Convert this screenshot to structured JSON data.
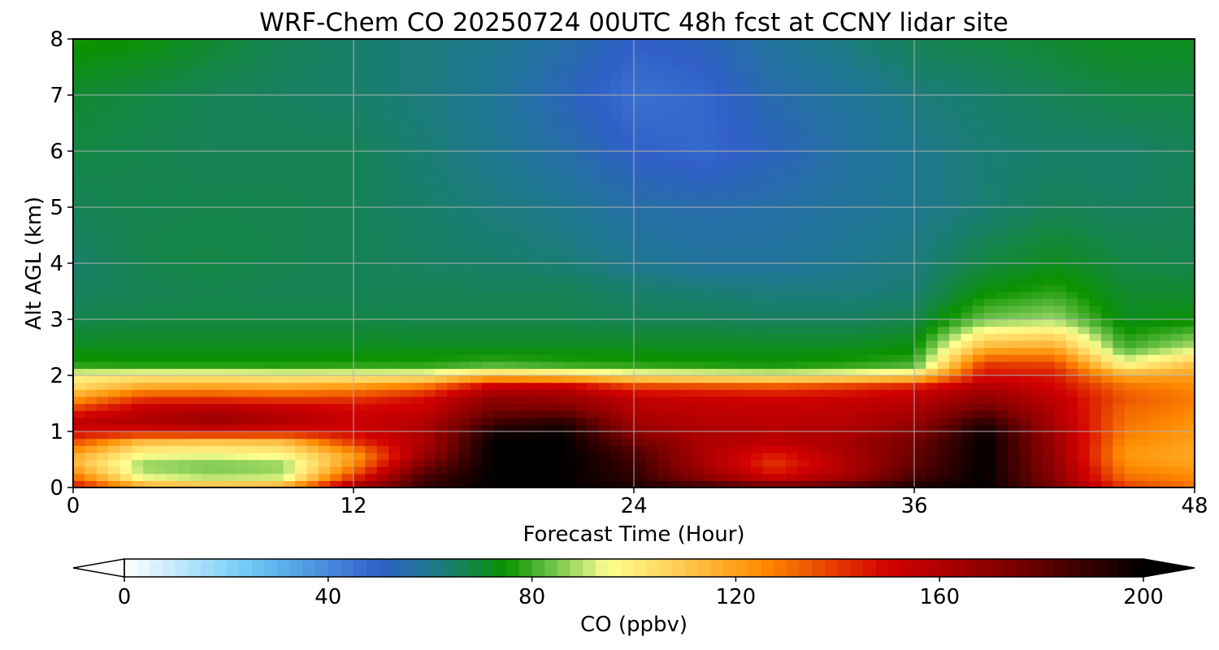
{
  "chart_data": {
    "type": "heatmap",
    "title": "WRF-Chem CO  20250724 00UTC 48h fcst at CCNY lidar site",
    "xlabel": "Forecast Time (Hour)",
    "ylabel": "Alt AGL (km)",
    "xlim": [
      0,
      48
    ],
    "ylim": [
      0,
      8
    ],
    "xticks": [
      0,
      12,
      24,
      36,
      48
    ],
    "yticks": [
      0,
      1,
      2,
      3,
      4,
      5,
      6,
      7,
      8
    ],
    "grid": true,
    "x": [
      0,
      3,
      6,
      9,
      12,
      15,
      18,
      21,
      24,
      27,
      30,
      33,
      36,
      39,
      42,
      45,
      48
    ],
    "y": [
      0,
      0.2,
      0.4,
      0.6,
      0.8,
      1.0,
      1.2,
      1.4,
      1.6,
      1.8,
      2.0,
      2.2,
      2.5,
      3.0,
      3.5,
      4.0,
      5.0,
      6.0,
      7.0,
      8.0
    ],
    "z": [
      [
        150,
        120,
        118,
        120,
        165,
        190,
        200,
        200,
        195,
        190,
        182,
        185,
        195,
        200,
        175,
        140,
        130
      ],
      [
        130,
        92,
        88,
        90,
        140,
        185,
        200,
        200,
        190,
        168,
        150,
        162,
        185,
        200,
        170,
        130,
        125
      ],
      [
        115,
        86,
        84,
        86,
        125,
        175,
        200,
        200,
        188,
        162,
        140,
        158,
        180,
        200,
        168,
        125,
        120
      ],
      [
        118,
        96,
        95,
        98,
        120,
        165,
        200,
        200,
        185,
        160,
        145,
        160,
        178,
        200,
        166,
        122,
        118
      ],
      [
        135,
        110,
        108,
        110,
        140,
        160,
        200,
        200,
        178,
        160,
        155,
        162,
        176,
        200,
        165,
        125,
        120
      ],
      [
        150,
        148,
        150,
        148,
        150,
        160,
        195,
        198,
        168,
        160,
        158,
        160,
        170,
        198,
        163,
        128,
        122
      ],
      [
        155,
        160,
        165,
        160,
        152,
        158,
        185,
        190,
        162,
        158,
        156,
        158,
        165,
        190,
        160,
        130,
        124
      ],
      [
        140,
        155,
        160,
        155,
        150,
        152,
        175,
        175,
        158,
        155,
        154,
        155,
        160,
        178,
        158,
        132,
        126
      ],
      [
        120,
        140,
        140,
        138,
        140,
        148,
        168,
        165,
        155,
        152,
        150,
        152,
        156,
        168,
        155,
        135,
        128
      ],
      [
        105,
        118,
        120,
        118,
        122,
        130,
        155,
        155,
        140,
        138,
        136,
        140,
        146,
        160,
        150,
        130,
        125
      ],
      [
        97,
        100,
        100,
        98,
        98,
        99,
        112,
        108,
        100,
        98,
        96,
        99,
        105,
        148,
        146,
        118,
        120
      ],
      [
        77,
        76,
        76,
        76,
        77,
        77,
        80,
        78,
        77,
        76,
        75,
        77,
        80,
        140,
        138,
        96,
        112
      ],
      [
        72,
        72,
        72,
        72,
        72,
        72,
        72,
        72,
        72,
        72,
        72,
        72,
        74,
        115,
        118,
        80,
        90
      ],
      [
        67,
        68,
        68,
        68,
        68,
        67,
        67,
        67,
        66,
        66,
        65,
        65,
        67,
        84,
        88,
        72,
        74
      ],
      [
        65,
        66,
        67,
        66,
        66,
        66,
        66,
        66,
        64,
        63,
        62,
        62,
        63,
        74,
        78,
        70,
        70
      ],
      [
        64,
        67,
        68,
        67,
        66,
        65,
        64,
        63,
        60,
        58,
        58,
        60,
        62,
        68,
        72,
        68,
        67
      ],
      [
        66,
        67,
        67,
        67,
        66,
        64,
        62,
        60,
        56,
        55,
        56,
        58,
        60,
        63,
        66,
        65,
        66
      ],
      [
        68,
        67,
        66,
        66,
        66,
        63,
        60,
        56,
        50,
        48,
        52,
        57,
        60,
        63,
        64,
        64,
        66
      ],
      [
        70,
        68,
        66,
        65,
        64,
        62,
        59,
        53,
        46,
        48,
        55,
        58,
        62,
        64,
        66,
        68,
        68
      ],
      [
        76,
        74,
        70,
        66,
        64,
        62,
        60,
        56,
        50,
        52,
        58,
        62,
        66,
        68,
        70,
        72,
        72
      ]
    ],
    "colorbar": {
      "label": "CO  (ppbv)",
      "min": 0,
      "max": 200,
      "ticks": [
        0,
        40,
        80,
        120,
        160,
        200
      ],
      "extend": "both",
      "stops": [
        [
          0,
          "#ffffff"
        ],
        [
          25,
          "#6bc8f5"
        ],
        [
          50,
          "#3060c8"
        ],
        [
          60,
          "#1e7890"
        ],
        [
          75,
          "#0a9200"
        ],
        [
          85,
          "#78c850"
        ],
        [
          95,
          "#ffff90"
        ],
        [
          110,
          "#ffc850"
        ],
        [
          125,
          "#ff8c00"
        ],
        [
          150,
          "#d20000"
        ],
        [
          175,
          "#780000"
        ],
        [
          200,
          "#000000"
        ]
      ]
    }
  }
}
